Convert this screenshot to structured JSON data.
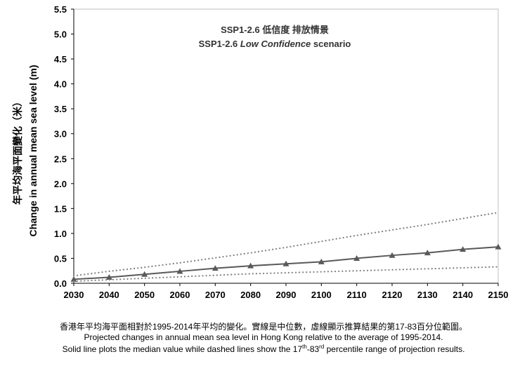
{
  "chart_data": {
    "type": "line",
    "title_zh": "SSP1-2.6 低信度 排放情景",
    "title_en": {
      "prefix": "SSP1-2.6 ",
      "italic": "Low Confidence",
      "suffix": " scenario"
    },
    "ylabel_zh": "年平均海平面變化（米）",
    "ylabel_en": "Change in annual mean sea level (m)",
    "xlabel": "",
    "x": [
      2030,
      2040,
      2050,
      2060,
      2070,
      2080,
      2090,
      2100,
      2110,
      2120,
      2130,
      2140,
      2150
    ],
    "xlim": [
      2030,
      2150
    ],
    "ylim": [
      0.0,
      5.5
    ],
    "yticks": [
      "0.0",
      "0.5",
      "1.0",
      "1.5",
      "2.0",
      "2.5",
      "3.0",
      "3.5",
      "4.0",
      "4.5",
      "5.0",
      "5.5"
    ],
    "grid": false,
    "series": [
      {
        "role": "median",
        "style": "solid",
        "marker": "triangle",
        "color": "#595959",
        "values": [
          0.08,
          0.12,
          0.18,
          0.24,
          0.3,
          0.35,
          0.39,
          0.43,
          0.5,
          0.56,
          0.61,
          0.68,
          0.73
        ]
      },
      {
        "role": "p83",
        "style": "dotted",
        "color": "#7f7f7f",
        "values": [
          0.15,
          0.24,
          0.32,
          0.41,
          0.51,
          0.61,
          0.72,
          0.84,
          0.96,
          1.07,
          1.18,
          1.3,
          1.42
        ]
      },
      {
        "role": "p17",
        "style": "dotted",
        "color": "#7f7f7f",
        "values": [
          0.04,
          0.07,
          0.1,
          0.13,
          0.16,
          0.19,
          0.21,
          0.23,
          0.25,
          0.27,
          0.29,
          0.31,
          0.33
        ]
      }
    ]
  },
  "caption": {
    "zh": "香港年平均海平面相對於1995-2014年平均的變化。實線是中位數，虛線顯示推算結果的第17-83百分位範圍。",
    "en1": "Projected changes in annual  mean sea level in Hong Kong relative to the average of 1995-2014.",
    "en2_a": "Solid line plots the median value while dashed lines show the 17",
    "en2_sup1": "th",
    "en2_b": "-83",
    "en2_sup2": "rd",
    "en2_c": " percentile range of projection results."
  }
}
